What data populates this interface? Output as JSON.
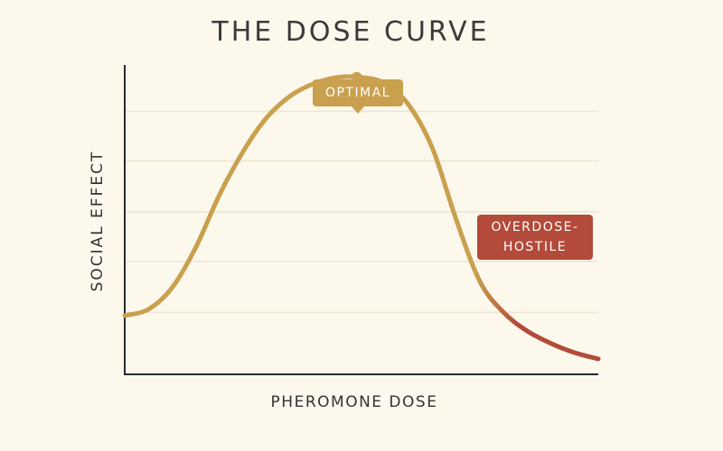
{
  "chart_data": {
    "type": "line",
    "title": "THE DOSE CURVE",
    "xlabel": "PHEROMONE DOSE",
    "ylabel": "SOCIAL EFFECT",
    "grid": true,
    "series": [
      {
        "x": [
          0,
          5,
          10,
          15,
          20,
          25,
          30,
          35,
          40,
          45,
          50,
          55,
          60,
          65,
          70,
          75,
          80,
          85,
          90,
          95,
          100
        ],
        "y": [
          19,
          21,
          28,
          41,
          58,
          72,
          83,
          90,
          94,
          96,
          96,
          94,
          87,
          73,
          50,
          30,
          20,
          14,
          10,
          7,
          5
        ]
      }
    ],
    "xlim": [
      0,
      100
    ],
    "ylim": [
      0,
      100
    ],
    "peak": {
      "x": 49,
      "y": 96
    },
    "annotations": [
      {
        "text": "OPTIMAL",
        "color": "#c9a04e"
      },
      {
        "lines": [
          "OVERDOSE-",
          "HOSTILE"
        ],
        "color": "#b34a3a"
      }
    ],
    "colors": {
      "curve": "#c9a04e",
      "overdose": "#b34a3a",
      "axis": "#2b2b2b",
      "grid": "#ede6cf",
      "background": "#fcf8ec"
    }
  }
}
